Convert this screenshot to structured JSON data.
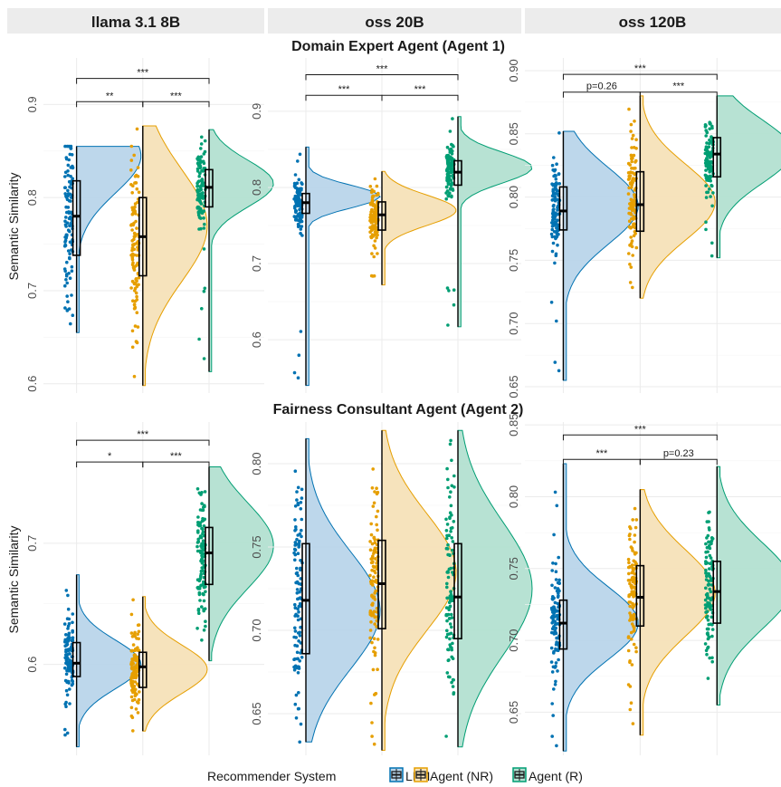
{
  "legend": {
    "title": "Recommender System",
    "items": [
      {
        "label": "LLM",
        "color": "#0072B2",
        "fill": "#b9d5ea"
      },
      {
        "label": "Agent (NR)",
        "color": "#E69F00",
        "fill": "#f6e2b8"
      },
      {
        "label": "Agent (R)",
        "color": "#009E73",
        "fill": "#b3e0d1"
      }
    ]
  },
  "columns": [
    "llama 3.1 8B",
    "oss 20B",
    "oss 120B"
  ],
  "rows": [
    "Domain Expert Agent (Agent 1)",
    "Fairness Consultant Agent (Agent 2)"
  ],
  "ylabel": "Semantic Similarity",
  "chart_data": [
    {
      "type": "raincloud",
      "row": 0,
      "col": 0,
      "ylim": [
        0.59,
        0.95
      ],
      "ticks": [
        0.6,
        0.7,
        0.8,
        0.9
      ],
      "tick_labels": [
        "0.6",
        "0.7",
        "0.8",
        "0.9"
      ],
      "groups": [
        {
          "name": "LLM",
          "min": 0.655,
          "q1": 0.738,
          "median": 0.78,
          "q3": 0.818,
          "max": 0.855,
          "mode": 0.845,
          "spread": 0.04
        },
        {
          "name": "Agent (NR)",
          "min": 0.598,
          "q1": 0.716,
          "median": 0.758,
          "q3": 0.8,
          "max": 0.877,
          "mode": 0.77,
          "spread": 0.06
        },
        {
          "name": "Agent (R)",
          "min": 0.613,
          "q1": 0.79,
          "median": 0.811,
          "q3": 0.83,
          "max": 0.873,
          "mode": 0.815,
          "spread": 0.025
        }
      ],
      "sig": [
        {
          "from": 0,
          "to": 2,
          "label": "***",
          "y": 0.928
        },
        {
          "from": 0,
          "to": 1,
          "label": "**",
          "y": 0.903
        },
        {
          "from": 1,
          "to": 2,
          "label": "***",
          "y": 0.903
        }
      ]
    },
    {
      "type": "raincloud",
      "row": 0,
      "col": 1,
      "ylim": [
        0.53,
        0.97
      ],
      "ticks": [
        0.6,
        0.7,
        0.8,
        0.9
      ],
      "tick_labels": [
        "0.6",
        "0.7",
        "0.8",
        "0.9"
      ],
      "groups": [
        {
          "name": "LLM",
          "min": 0.54,
          "q1": 0.766,
          "median": 0.78,
          "q3": 0.792,
          "max": 0.853,
          "mode": 0.788,
          "spread": 0.015
        },
        {
          "name": "Agent (NR)",
          "min": 0.672,
          "q1": 0.744,
          "median": 0.764,
          "q3": 0.781,
          "max": 0.821,
          "mode": 0.77,
          "spread": 0.02
        },
        {
          "name": "Agent (R)",
          "min": 0.617,
          "q1": 0.803,
          "median": 0.82,
          "q3": 0.835,
          "max": 0.893,
          "mode": 0.826,
          "spread": 0.02
        }
      ],
      "sig": [
        {
          "from": 0,
          "to": 2,
          "label": "***",
          "y": 0.948
        },
        {
          "from": 0,
          "to": 1,
          "label": "***",
          "y": 0.921
        },
        {
          "from": 1,
          "to": 2,
          "label": "***",
          "y": 0.921
        }
      ]
    },
    {
      "type": "raincloud",
      "row": 0,
      "col": 2,
      "ylim": [
        0.645,
        0.91
      ],
      "ticks": [
        0.65,
        0.7,
        0.75,
        0.8,
        0.85,
        0.9
      ],
      "tick_labels": [
        "0.65",
        "0.70",
        "0.75",
        "0.80",
        "0.85",
        "0.90"
      ],
      "groups": [
        {
          "name": "LLM",
          "min": 0.655,
          "q1": 0.774,
          "median": 0.789,
          "q3": 0.808,
          "max": 0.852,
          "mode": 0.793,
          "spread": 0.03
        },
        {
          "name": "Agent (NR)",
          "min": 0.72,
          "q1": 0.773,
          "median": 0.794,
          "q3": 0.82,
          "max": 0.88,
          "mode": 0.796,
          "spread": 0.03
        },
        {
          "name": "Agent (R)",
          "min": 0.752,
          "q1": 0.816,
          "median": 0.834,
          "q3": 0.847,
          "max": 0.88,
          "mode": 0.836,
          "spread": 0.025
        }
      ],
      "sig": [
        {
          "from": 0,
          "to": 2,
          "label": "***",
          "y": 0.897
        },
        {
          "from": 0,
          "to": 1,
          "label": "p=0.26",
          "y": 0.883
        },
        {
          "from": 1,
          "to": 2,
          "label": "***",
          "y": 0.883
        }
      ]
    },
    {
      "type": "raincloud",
      "row": 1,
      "col": 0,
      "ylim": [
        0.525,
        0.8
      ],
      "ticks": [
        0.6,
        0.7
      ],
      "tick_labels": [
        "0.6",
        "0.7"
      ],
      "groups": [
        {
          "name": "LLM",
          "min": 0.532,
          "q1": 0.59,
          "median": 0.601,
          "q3": 0.618,
          "max": 0.674,
          "mode": 0.6,
          "spread": 0.02
        },
        {
          "name": "Agent (NR)",
          "min": 0.545,
          "q1": 0.581,
          "median": 0.598,
          "q3": 0.61,
          "max": 0.656,
          "mode": 0.596,
          "spread": 0.02
        },
        {
          "name": "Agent (R)",
          "min": 0.603,
          "q1": 0.666,
          "median": 0.692,
          "q3": 0.713,
          "max": 0.763,
          "mode": 0.698,
          "spread": 0.035
        }
      ],
      "sig": [
        {
          "from": 0,
          "to": 2,
          "label": "***",
          "y": 0.785
        },
        {
          "from": 0,
          "to": 1,
          "label": "*",
          "y": 0.767
        },
        {
          "from": 1,
          "to": 2,
          "label": "***",
          "y": 0.767
        }
      ]
    },
    {
      "type": "raincloud",
      "row": 1,
      "col": 1,
      "ylim": [
        0.625,
        0.825
      ],
      "ticks": [
        0.65,
        0.7,
        0.75,
        0.8
      ],
      "tick_labels": [
        "0.65",
        "0.70",
        "0.75",
        "0.80"
      ],
      "groups": [
        {
          "name": "LLM",
          "min": 0.633,
          "q1": 0.686,
          "median": 0.718,
          "q3": 0.752,
          "max": 0.815,
          "mode": 0.712,
          "spread": 0.035
        },
        {
          "name": "Agent (NR)",
          "min": 0.628,
          "q1": 0.701,
          "median": 0.728,
          "q3": 0.754,
          "max": 0.82,
          "mode": 0.735,
          "spread": 0.035
        },
        {
          "name": "Agent (R)",
          "min": 0.63,
          "q1": 0.695,
          "median": 0.72,
          "q3": 0.752,
          "max": 0.82,
          "mode": 0.725,
          "spread": 0.04
        }
      ],
      "sig": []
    },
    {
      "type": "raincloud",
      "row": 1,
      "col": 2,
      "ylim": [
        0.62,
        0.852
      ],
      "ticks": [
        0.65,
        0.7,
        0.75,
        0.8,
        0.85
      ],
      "tick_labels": [
        "0.65",
        "0.70",
        "0.75",
        "0.80",
        "0.85"
      ],
      "groups": [
        {
          "name": "LLM",
          "min": 0.623,
          "q1": 0.694,
          "median": 0.712,
          "q3": 0.728,
          "max": 0.823,
          "mode": 0.712,
          "spread": 0.025
        },
        {
          "name": "Agent (NR)",
          "min": 0.634,
          "q1": 0.71,
          "median": 0.73,
          "q3": 0.752,
          "max": 0.805,
          "mode": 0.733,
          "spread": 0.03
        },
        {
          "name": "Agent (R)",
          "min": 0.655,
          "q1": 0.712,
          "median": 0.734,
          "q3": 0.755,
          "max": 0.821,
          "mode": 0.738,
          "spread": 0.03
        }
      ],
      "sig": [
        {
          "from": 0,
          "to": 2,
          "label": "***",
          "y": 0.843
        },
        {
          "from": 0,
          "to": 1,
          "label": "***",
          "y": 0.826
        },
        {
          "from": 1,
          "to": 2,
          "label": "p=0.23",
          "y": 0.826
        }
      ]
    }
  ]
}
